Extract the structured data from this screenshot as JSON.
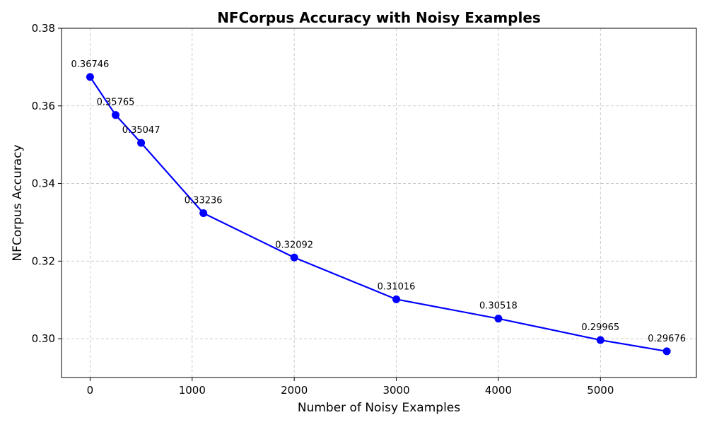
{
  "chart_data": {
    "type": "line",
    "title": "NFCorpus Accuracy with Noisy Examples",
    "xlabel": "Number of Noisy Examples",
    "ylabel": "NFCorpus Accuracy",
    "xlim": [
      -280,
      5940
    ],
    "ylim": [
      0.29,
      0.38
    ],
    "xticks": [
      0,
      1000,
      2000,
      3000,
      4000,
      5000
    ],
    "xtick_labels": [
      "0",
      "1000",
      "2000",
      "3000",
      "4000",
      "5000"
    ],
    "yticks": [
      0.3,
      0.32,
      0.34,
      0.36,
      0.38
    ],
    "ytick_labels": [
      "0.30",
      "0.32",
      "0.34",
      "0.36",
      "0.38"
    ],
    "grid": true,
    "series": [
      {
        "color": "#0000ff",
        "marker": "circle",
        "x": [
          0,
          250,
          500,
          1110,
          2000,
          3000,
          4000,
          5000,
          5650
        ],
        "y": [
          0.36746,
          0.35765,
          0.35047,
          0.33236,
          0.32092,
          0.31016,
          0.30518,
          0.29965,
          0.29676
        ],
        "labels": [
          "0.36746",
          "0.35765",
          "0.35047",
          "0.33236",
          "0.32092",
          "0.31016",
          "0.30518",
          "0.29965",
          "0.29676"
        ]
      }
    ]
  }
}
